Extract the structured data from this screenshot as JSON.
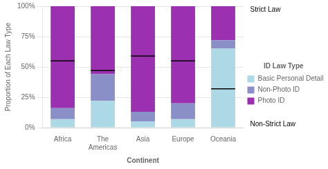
{
  "chart_data": {
    "type": "bar",
    "stacked": true,
    "categories": [
      "Africa",
      "The\nAmericas",
      "Asia",
      "Europe",
      "Oceania"
    ],
    "series": [
      {
        "name": "Basic Personal Details",
        "color": "#add8e6",
        "values": [
          0.07,
          0.22,
          0.05,
          0.07,
          0.65
        ]
      },
      {
        "name": "Non-Photo ID",
        "color": "#8b8fc8",
        "values": [
          0.09,
          0.22,
          0.08,
          0.13,
          0.07
        ]
      },
      {
        "name": "Photo ID",
        "color": "#9b30b0",
        "values": [
          0.84,
          0.56,
          0.87,
          0.8,
          0.28
        ]
      }
    ],
    "mean_values": [
      0.55,
      0.47,
      0.59,
      0.55,
      0.32
    ],
    "xlabel": "Continent",
    "ylabel": "Proportion of Each Law Type",
    "ylim": [
      0,
      1.0
    ],
    "yticks": [
      {
        "value": 0,
        "label": "0%"
      },
      {
        "value": 0.25,
        "label": "25%"
      },
      {
        "value": 0.5,
        "label": "50%"
      },
      {
        "value": 0.75,
        "label": "75%"
      },
      {
        "value": 1.0,
        "label": "100%"
      }
    ],
    "grid": true,
    "legend": "right",
    "legend_title": "ID Law Type",
    "annotations": [
      "Strict Law",
      "Non-Strict Law"
    ]
  }
}
